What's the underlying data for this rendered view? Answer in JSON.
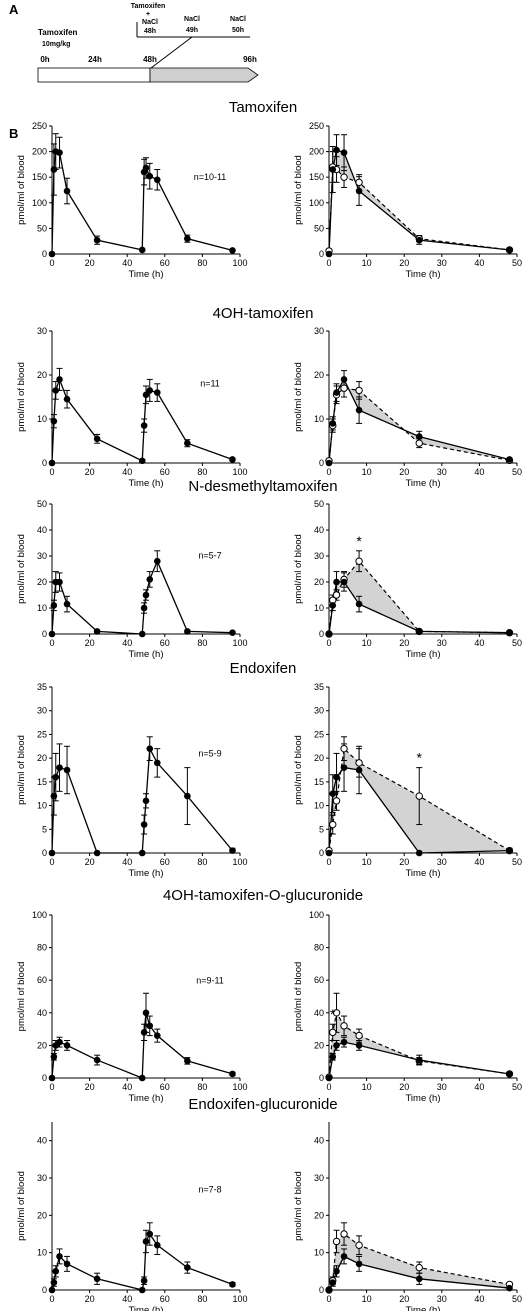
{
  "panel_a": {
    "label": "A",
    "drug": "Tamoxifen",
    "dose": "10mg/kg",
    "bracket_title_1": "Tamoxifen",
    "bracket_title_2": "+",
    "nacl_labels": [
      "NaCl",
      "NaCl",
      "NaCl"
    ],
    "nacl_times": [
      "48h",
      "49h",
      "50h"
    ],
    "timeline_ticks": [
      "0h",
      "24h",
      "48h",
      "96h"
    ]
  },
  "panel_b": {
    "label": "B"
  },
  "common": {
    "xlabel": "Time (h)",
    "ylabel": "pmol/ml of blood",
    "left_xticks": [
      0,
      20,
      40,
      60,
      80,
      100
    ],
    "right_xticks": [
      0,
      10,
      20,
      30,
      40,
      50
    ]
  },
  "chart_data": [
    {
      "type": "line",
      "title": "Tamoxifen",
      "n_label": "n=10-11",
      "ylim": [
        0,
        250
      ],
      "yticks": [
        0,
        50,
        100,
        150,
        200,
        250
      ],
      "left": {
        "xlim": [
          0,
          100
        ],
        "x": [
          0,
          1,
          2,
          4,
          8,
          24,
          48,
          49,
          50,
          52,
          56,
          72,
          96
        ],
        "y": [
          0,
          165,
          200,
          198,
          123,
          27,
          8,
          160,
          168,
          152,
          145,
          30,
          7
        ],
        "err": [
          0,
          50,
          35,
          30,
          25,
          8,
          2,
          25,
          20,
          25,
          20,
          7,
          2
        ]
      },
      "right": {
        "xlim": [
          0,
          50
        ],
        "x": [
          0,
          1,
          2,
          4,
          8,
          24,
          48
        ],
        "filled": {
          "y": [
            0,
            165,
            203,
            198,
            123,
            27,
            8
          ],
          "err": [
            0,
            45,
            30,
            35,
            28,
            8,
            2
          ]
        },
        "open": {
          "y": [
            6,
            170,
            165,
            150,
            140,
            30,
            8
          ],
          "err": [
            0,
            30,
            25,
            20,
            15,
            6,
            2
          ]
        },
        "star_x": null
      }
    },
    {
      "type": "line",
      "title": "4OH-tamoxifen",
      "n_label": "n=11",
      "ylim": [
        0,
        30
      ],
      "yticks": [
        0,
        10,
        20,
        30
      ],
      "left": {
        "xlim": [
          0,
          100
        ],
        "x": [
          0,
          1,
          2,
          4,
          8,
          24,
          48,
          49,
          50,
          52,
          56,
          72,
          96
        ],
        "y": [
          0,
          9.5,
          16.5,
          19,
          14.5,
          5.5,
          0.5,
          8.5,
          15.5,
          16.5,
          16,
          4.5,
          0.8
        ],
        "err": [
          0,
          1.5,
          2,
          2.5,
          2,
          1,
          0.3,
          1.5,
          2,
          2.5,
          2,
          0.8,
          0.3
        ]
      },
      "right": {
        "xlim": [
          0,
          50
        ],
        "x": [
          0,
          1,
          2,
          4,
          8,
          24,
          48
        ],
        "filled": {
          "y": [
            0,
            9,
            16,
            19,
            12,
            6,
            0.8
          ],
          "err": [
            0,
            1.5,
            2,
            2,
            3,
            1.2,
            0.3
          ]
        },
        "open": {
          "y": [
            0.5,
            8.5,
            15.5,
            17,
            16.5,
            4.5,
            0.6
          ],
          "err": [
            0,
            1.5,
            2,
            2,
            2,
            1,
            0.3
          ]
        },
        "star_x": null
      }
    },
    {
      "type": "line",
      "title": "N-desmethyltamoxifen",
      "n_label": "n=5-7",
      "ylim": [
        0,
        50
      ],
      "yticks": [
        0,
        10,
        20,
        30,
        40,
        50
      ],
      "left": {
        "xlim": [
          0,
          100
        ],
        "x": [
          0,
          1,
          2,
          4,
          8,
          24,
          48,
          49,
          50,
          52,
          56,
          72,
          96
        ],
        "y": [
          0,
          11,
          20,
          20,
          11.5,
          1,
          0,
          10,
          15,
          21,
          28,
          1,
          0.5
        ],
        "err": [
          0,
          2,
          4,
          3.5,
          3,
          0.5,
          0,
          2,
          2,
          3,
          4,
          0.5,
          0.3
        ]
      },
      "right": {
        "xlim": [
          0,
          50
        ],
        "x": [
          0,
          1,
          2,
          4,
          8,
          24,
          48
        ],
        "filled": {
          "y": [
            0,
            11,
            20,
            20,
            11.5,
            1,
            0.5
          ],
          "err": [
            0,
            2,
            4,
            3.5,
            3,
            0.5,
            0.3
          ]
        },
        "open": {
          "y": [
            0,
            13,
            15,
            21,
            28,
            1,
            0.5
          ],
          "err": [
            0,
            2,
            2,
            3,
            4,
            0.5,
            0.3
          ]
        },
        "star_x": 8
      }
    },
    {
      "type": "line",
      "title": "Endoxifen",
      "n_label": "n=5-9",
      "ylim": [
        0,
        35
      ],
      "yticks": [
        0,
        5,
        10,
        15,
        20,
        25,
        30,
        35
      ],
      "left": {
        "xlim": [
          0,
          100
        ],
        "x": [
          0,
          1,
          2,
          4,
          8,
          24,
          48,
          49,
          50,
          52,
          56,
          72,
          96
        ],
        "y": [
          0,
          12,
          16,
          18,
          17.5,
          0,
          0,
          6,
          11,
          22,
          19,
          12,
          0.5
        ],
        "err": [
          0,
          4,
          5,
          5,
          5,
          0,
          0,
          2,
          1.5,
          2.5,
          3,
          6,
          0.5
        ]
      },
      "right": {
        "xlim": [
          0,
          50
        ],
        "x": [
          0,
          1,
          2,
          4,
          8,
          24,
          48
        ],
        "filled": {
          "y": [
            0,
            12.5,
            16,
            18,
            17.5,
            0,
            0.5
          ],
          "err": [
            0,
            4,
            5,
            5,
            5,
            0,
            0.3
          ]
        },
        "open": {
          "y": [
            0.5,
            6,
            11,
            22,
            19,
            12,
            0.5
          ],
          "err": [
            0,
            2,
            2,
            2.5,
            3,
            6,
            0.5
          ]
        },
        "star_x": 24
      }
    },
    {
      "type": "line",
      "title": "4OH-tamoxifen-O-glucuronide",
      "n_label": "n=9-11",
      "ylim": [
        0,
        100
      ],
      "yticks": [
        0,
        20,
        40,
        60,
        80,
        100
      ],
      "left": {
        "xlim": [
          0,
          100
        ],
        "x": [
          0,
          1,
          2,
          4,
          8,
          24,
          48,
          49,
          50,
          52,
          56,
          72,
          96
        ],
        "y": [
          0,
          13,
          20,
          22,
          20,
          11,
          0,
          28,
          40,
          32,
          26,
          10.5,
          2.5
        ],
        "err": [
          0,
          2,
          3,
          3,
          3,
          3,
          0,
          5,
          12,
          6,
          4,
          2,
          1
        ]
      },
      "right": {
        "xlim": [
          0,
          50
        ],
        "x": [
          0,
          1,
          2,
          4,
          8,
          24,
          48
        ],
        "filled": {
          "y": [
            0,
            13,
            20,
            22,
            20,
            11,
            2.5
          ],
          "err": [
            0,
            2,
            3,
            3,
            3,
            3,
            1
          ]
        },
        "open": {
          "y": [
            0.5,
            28,
            40,
            32,
            26,
            10.5,
            2.5
          ],
          "err": [
            0,
            5,
            12,
            6,
            4,
            2,
            1
          ]
        },
        "star_x": 1
      }
    },
    {
      "type": "line",
      "title": "Endoxifen-glucuronide",
      "n_label": "n=7-8",
      "ylim": [
        0,
        45
      ],
      "yticks": [
        0,
        10,
        20,
        30,
        40
      ],
      "left": {
        "xlim": [
          0,
          100
        ],
        "x": [
          0,
          1,
          2,
          4,
          8,
          24,
          48,
          49,
          50,
          52,
          56,
          72,
          96
        ],
        "y": [
          0,
          2,
          5,
          9,
          7,
          3,
          0,
          2.5,
          13,
          15,
          12,
          6,
          1.5
        ],
        "err": [
          0,
          1,
          1.5,
          2,
          2,
          1.5,
          0,
          1,
          3,
          3,
          2.5,
          1.5,
          0.5
        ]
      },
      "right": {
        "xlim": [
          0,
          50
        ],
        "x": [
          0,
          1,
          2,
          4,
          8,
          24,
          48
        ],
        "filled": {
          "y": [
            0,
            2,
            5,
            9,
            7,
            3,
            0.5
          ],
          "err": [
            0,
            1,
            1.5,
            2,
            2,
            1.5,
            0.5
          ]
        },
        "open": {
          "y": [
            0,
            2.5,
            13,
            15,
            12,
            6,
            1.5
          ],
          "err": [
            0,
            1,
            3,
            3,
            2.5,
            1.5,
            0.5
          ]
        },
        "star_x": null
      }
    }
  ]
}
